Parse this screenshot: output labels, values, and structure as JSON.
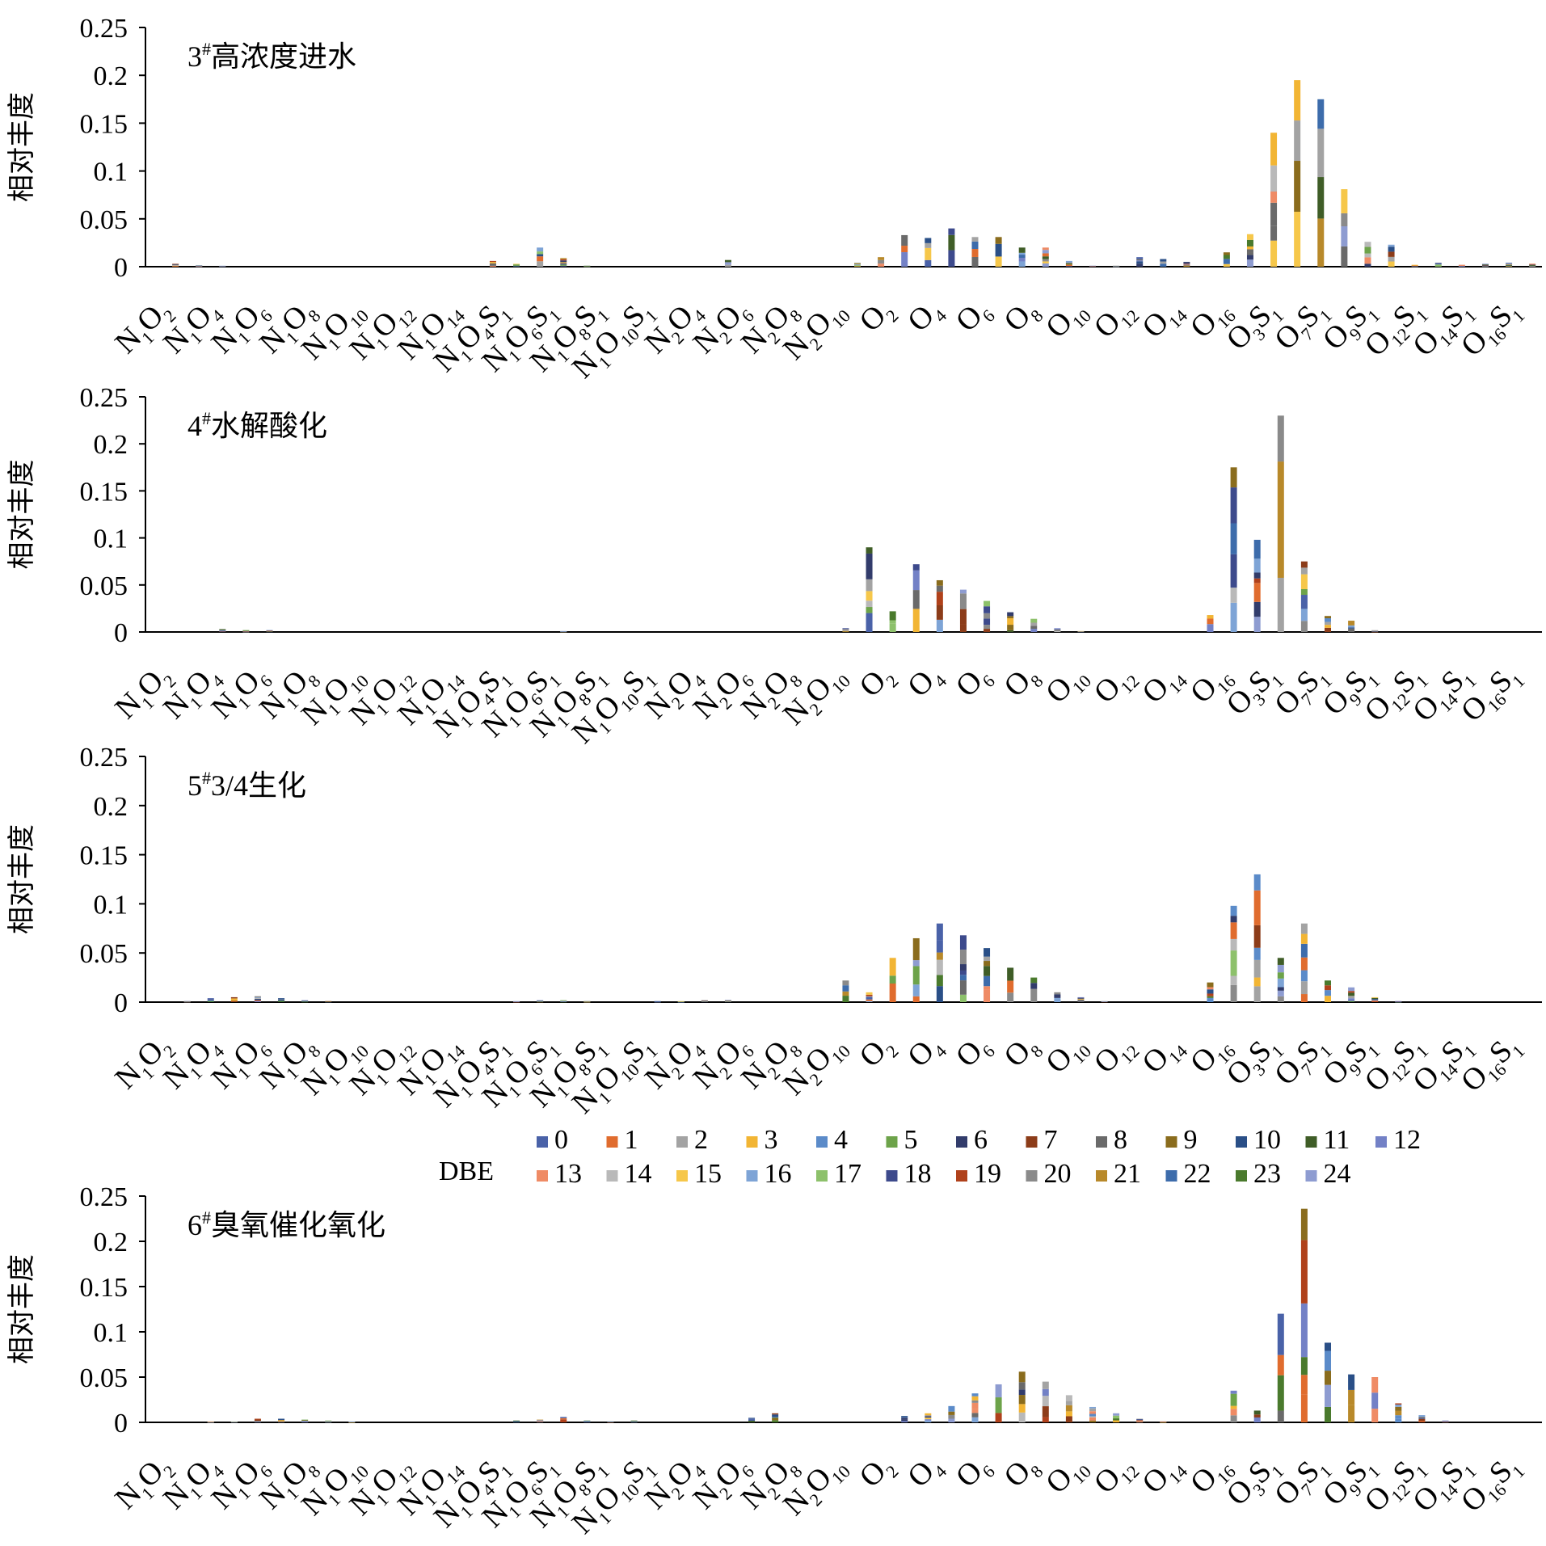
{
  "chart_data": {
    "type": "bar",
    "stacked": true,
    "ylabel": "相对丰度",
    "ylim": [
      0,
      0.25
    ],
    "yticks": [
      "0.25",
      "0.2",
      "0.15",
      "0.1",
      "0.05",
      "0"
    ],
    "grid": false,
    "legend": {
      "title": "DBE",
      "placement": "above-bottom-panel",
      "entries": [
        "0",
        "1",
        "2",
        "3",
        "4",
        "5",
        "6",
        "7",
        "8",
        "9",
        "10",
        "11",
        "12",
        "13",
        "14",
        "15",
        "16",
        "17",
        "18",
        "19",
        "20",
        "21",
        "22",
        "23",
        "24"
      ]
    },
    "colors": [
      "#4a62a8",
      "#e06c2e",
      "#a3a3a3",
      "#f2b534",
      "#5b8bc9",
      "#6da34a",
      "#323c6b",
      "#8c3c19",
      "#6a6a6a",
      "#8a6c1d",
      "#2a4f87",
      "#3f5d27",
      "#7381c6",
      "#ef8b65",
      "#b9b9b9",
      "#f6c74a",
      "#7ea4d6",
      "#8dc16b",
      "#3d4a8c",
      "#b0411b",
      "#8a8a8a",
      "#b8892a",
      "#3d6cab",
      "#4a7a2d",
      "#8e9cd1"
    ],
    "category_labels": [
      {
        "main": "N",
        "sub": "1",
        "sup": "",
        "tail": "O",
        "tsub": "2",
        "tsup": ""
      },
      {
        "main": "N",
        "sub": "1",
        "sup": "",
        "tail": "O",
        "tsub": "4",
        "tsup": ""
      },
      {
        "main": "N",
        "sub": "1",
        "sup": "",
        "tail": "O",
        "tsub": "6",
        "tsup": ""
      },
      {
        "main": "N",
        "sub": "1",
        "sup": "",
        "tail": "O",
        "tsub": "8",
        "tsup": ""
      },
      {
        "main": "N",
        "sub": "1",
        "sup": "",
        "tail": "O",
        "tsub": "10",
        "tsup": ""
      },
      {
        "main": "N",
        "sub": "1",
        "sup": "",
        "tail": "O",
        "tsub": "12",
        "tsup": ""
      },
      {
        "main": "N",
        "sub": "1",
        "sup": "",
        "tail": "O",
        "tsub": "14",
        "tsup": ""
      },
      {
        "main": "N",
        "sub": "1",
        "sup": "",
        "tail": "O",
        "tsub": "4",
        "tsup": "",
        "t2": "S",
        "t2sub": "1"
      },
      {
        "main": "N",
        "sub": "1",
        "sup": "",
        "tail": "O",
        "tsub": "6",
        "tsup": "",
        "t2": "S",
        "t2sub": "1"
      },
      {
        "main": "N",
        "sub": "1",
        "sup": "",
        "tail": "O",
        "tsub": "8",
        "tsup": "",
        "t2": "S",
        "t2sub": "1"
      },
      {
        "main": "N",
        "sub": "1",
        "sup": "",
        "tail": "O",
        "tsub": "10",
        "tsup": "",
        "t2": "S",
        "t2sub": "1"
      },
      {
        "main": "N",
        "sub": "2",
        "sup": "",
        "tail": "O",
        "tsub": "4",
        "tsup": ""
      },
      {
        "main": "N",
        "sub": "2",
        "sup": "",
        "tail": "O",
        "tsub": "6",
        "tsup": ""
      },
      {
        "main": "N",
        "sub": "2",
        "sup": "",
        "tail": "O",
        "tsub": "8",
        "tsup": ""
      },
      {
        "main": "N",
        "sub": "2",
        "sup": "",
        "tail": "O",
        "tsub": "10",
        "tsup": ""
      },
      {
        "main": "O",
        "sub": "2",
        "sup": ""
      },
      {
        "main": "O",
        "sub": "4",
        "sup": ""
      },
      {
        "main": "O",
        "sub": "6",
        "sup": ""
      },
      {
        "main": "O",
        "sub": "8",
        "sup": ""
      },
      {
        "main": "O",
        "sub": "10",
        "sup": ""
      },
      {
        "main": "O",
        "sub": "12",
        "sup": ""
      },
      {
        "main": "O",
        "sub": "14",
        "sup": ""
      },
      {
        "main": "O",
        "sub": "16",
        "sup": ""
      },
      {
        "main": "O",
        "sub": "3",
        "sup": "",
        "tail": "S",
        "tsub": "1",
        "tsup": ""
      },
      {
        "main": "O",
        "sub": "7",
        "sup": "",
        "tail": "S",
        "tsub": "1",
        "tsup": ""
      },
      {
        "main": "O",
        "sub": "9",
        "sup": "",
        "tail": "S",
        "tsub": "1",
        "tsup": ""
      },
      {
        "main": "O",
        "sub": "12",
        "sup": "",
        "tail": "S",
        "tsub": "1",
        "tsup": ""
      },
      {
        "main": "O",
        "sub": "14",
        "sup": "",
        "tail": "S",
        "tsub": "1",
        "tsup": ""
      },
      {
        "main": "O",
        "sub": "16",
        "sup": "",
        "tail": "S",
        "tsub": "1",
        "tsup": ""
      }
    ],
    "panels": [
      {
        "title_num": "3",
        "title_sup": "#",
        "title_text": "高浓度进水",
        "bars": [
          [
            1,
            0.003
          ],
          [
            2,
            0.0015
          ],
          [
            3,
            0.001
          ],
          [
            14.5,
            0.006
          ],
          [
            15.5,
            0.003
          ],
          [
            16.5,
            0.02
          ],
          [
            17.5,
            0.009
          ],
          [
            18.5,
            0.001
          ],
          [
            24.5,
            0.007
          ],
          [
            30,
            0.004
          ],
          [
            31,
            0.01
          ],
          [
            32,
            0.033
          ],
          [
            33,
            0.03
          ],
          [
            34,
            0.04
          ],
          [
            35,
            0.031
          ],
          [
            36,
            0.031
          ],
          [
            37,
            0.02
          ],
          [
            38,
            0.02
          ],
          [
            39,
            0.006
          ],
          [
            40,
            0.001
          ],
          [
            41,
            0.001
          ],
          [
            42,
            0.01
          ],
          [
            43,
            0.008
          ],
          [
            44,
            0.005
          ],
          [
            45.7,
            0.015
          ],
          [
            46.7,
            0.034
          ],
          [
            47.7,
            0.14
          ],
          [
            48.7,
            0.195
          ],
          [
            49.7,
            0.175
          ],
          [
            50.7,
            0.081
          ],
          [
            51.7,
            0.026
          ],
          [
            52.7,
            0.023
          ],
          [
            53.7,
            0.002
          ],
          [
            54.7,
            0.004
          ],
          [
            55.7,
            0.002
          ],
          [
            56.7,
            0.003
          ],
          [
            57.7,
            0.004
          ],
          [
            58.7,
            0.003
          ]
        ]
      },
      {
        "title_num": "4",
        "title_sup": "#",
        "title_text": "水解酸化",
        "bars": [
          [
            3,
            0.003
          ],
          [
            4,
            0.002
          ],
          [
            5,
            0.002
          ],
          [
            17.5,
            0.001
          ],
          [
            29.5,
            0.004
          ],
          [
            30.5,
            0.09
          ],
          [
            31.5,
            0.022
          ],
          [
            32.5,
            0.072
          ],
          [
            33.5,
            0.055
          ],
          [
            34.5,
            0.045
          ],
          [
            35.5,
            0.033
          ],
          [
            36.5,
            0.021
          ],
          [
            37.5,
            0.014
          ],
          [
            38.5,
            0.004
          ],
          [
            39.5,
            0.001
          ],
          [
            45,
            0.018
          ],
          [
            46,
            0.175
          ],
          [
            47,
            0.098
          ],
          [
            48,
            0.23
          ],
          [
            49,
            0.075
          ],
          [
            50,
            0.017
          ],
          [
            51,
            0.012
          ],
          [
            52,
            0.002
          ]
        ]
      },
      {
        "title_num": "5",
        "title_sup": "#",
        "title_text": "3/4生化",
        "bars": [
          [
            1.5,
            0.001
          ],
          [
            2.5,
            0.004
          ],
          [
            3.5,
            0.005
          ],
          [
            4.5,
            0.006
          ],
          [
            5.5,
            0.004
          ],
          [
            6.5,
            0.002
          ],
          [
            7.5,
            0.001
          ],
          [
            15.5,
            0.001
          ],
          [
            16.5,
            0.002
          ],
          [
            17.5,
            0.002
          ],
          [
            18.5,
            0.001
          ],
          [
            21.5,
            0.001
          ],
          [
            22.5,
            0.001
          ],
          [
            23.5,
            0.002
          ],
          [
            24.5,
            0.002
          ],
          [
            29.5,
            0.022
          ],
          [
            30.5,
            0.01
          ],
          [
            31.5,
            0.045
          ],
          [
            32.5,
            0.065
          ],
          [
            33.5,
            0.08
          ],
          [
            34.5,
            0.068
          ],
          [
            35.5,
            0.055
          ],
          [
            36.5,
            0.035
          ],
          [
            37.5,
            0.025
          ],
          [
            38.5,
            0.01
          ],
          [
            39.5,
            0.005
          ],
          [
            40.5,
            0.001
          ],
          [
            45,
            0.02
          ],
          [
            46,
            0.098
          ],
          [
            47,
            0.13
          ],
          [
            48,
            0.045
          ],
          [
            49,
            0.08
          ],
          [
            50,
            0.022
          ],
          [
            51,
            0.015
          ],
          [
            52,
            0.005
          ],
          [
            53,
            0.001
          ]
        ]
      },
      {
        "title_num": "6",
        "title_sup": "#",
        "title_text": "臭氧催化氧化",
        "bars": [
          [
            2.5,
            0.001
          ],
          [
            3.5,
            0.001
          ],
          [
            4.5,
            0.004
          ],
          [
            5.5,
            0.004
          ],
          [
            6.5,
            0.003
          ],
          [
            7.5,
            0.002
          ],
          [
            8.5,
            0.001
          ],
          [
            15.5,
            0.002
          ],
          [
            16.5,
            0.003
          ],
          [
            17.5,
            0.006
          ],
          [
            18.5,
            0.002
          ],
          [
            19.5,
            0.001
          ],
          [
            20.5,
            0.002
          ],
          [
            25.5,
            0.005
          ],
          [
            26.5,
            0.01
          ],
          [
            32,
            0.007
          ],
          [
            33,
            0.01
          ],
          [
            34,
            0.018
          ],
          [
            35,
            0.032
          ],
          [
            36,
            0.042
          ],
          [
            37,
            0.056
          ],
          [
            38,
            0.045
          ],
          [
            39,
            0.03
          ],
          [
            40,
            0.017
          ],
          [
            41,
            0.01
          ],
          [
            42,
            0.004
          ],
          [
            43,
            0.001
          ],
          [
            46,
            0.035
          ],
          [
            47,
            0.013
          ],
          [
            48,
            0.12
          ],
          [
            49,
            0.236
          ],
          [
            50,
            0.088
          ],
          [
            51,
            0.053
          ],
          [
            52,
            0.05
          ],
          [
            53,
            0.021
          ],
          [
            54,
            0.008
          ],
          [
            55,
            0.002
          ]
        ]
      }
    ]
  }
}
